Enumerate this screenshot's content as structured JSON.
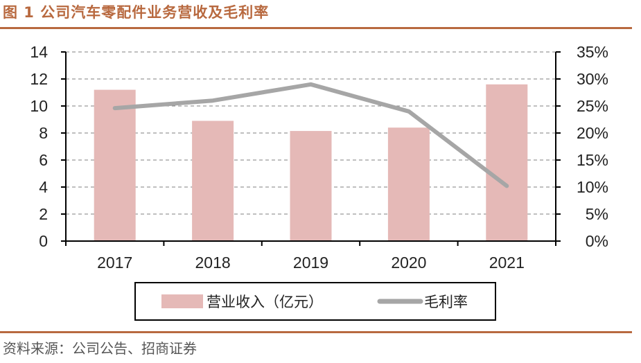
{
  "header": {
    "title": "图 1  公司汽车零配件业务营收及毛利率"
  },
  "footer": {
    "source": "资料来源：公司公告、招商证券"
  },
  "chart_data": {
    "type": "bar",
    "title": "图 1  公司汽车零配件业务营收及毛利率",
    "categories": [
      "2017",
      "2018",
      "2019",
      "2020",
      "2021"
    ],
    "series": [
      {
        "name": "营业收入（亿元）",
        "type": "bar",
        "axis": "left",
        "values": [
          11.2,
          8.9,
          8.15,
          8.4,
          11.6
        ],
        "color": "#e5b9b7"
      },
      {
        "name": "毛利率",
        "type": "line",
        "axis": "right",
        "values": [
          24.6,
          26.0,
          29.0,
          24.0,
          10.2
        ],
        "color": "#a6a6a6"
      }
    ],
    "y_left": {
      "min": 0,
      "max": 14,
      "ticks": [
        "0",
        "2",
        "4",
        "6",
        "8",
        "10",
        "12",
        "14"
      ]
    },
    "y_right": {
      "min": 0,
      "max": 35,
      "ticks": [
        "0%",
        "5%",
        "10%",
        "15%",
        "20%",
        "25%",
        "30%",
        "35%"
      ]
    },
    "grid": true,
    "legend": "bottom-center"
  }
}
